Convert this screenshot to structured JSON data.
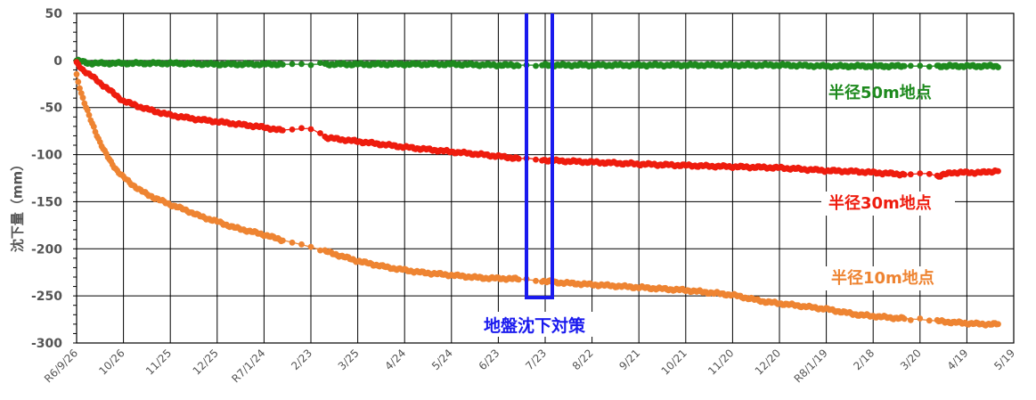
{
  "chart_data": {
    "type": "scatter",
    "ylabel": "沈下量（mm）",
    "ylim": [
      -300,
      50
    ],
    "yticks": [
      50,
      0,
      -50,
      -100,
      -150,
      -200,
      -250,
      -300
    ],
    "xticks": [
      "R6/9/26",
      "10/26",
      "11/25",
      "12/25",
      "R7/1/24",
      "2/23",
      "3/25",
      "4/24",
      "5/24",
      "6/23",
      "7/23",
      "8/22",
      "9/21",
      "10/21",
      "11/20",
      "12/20",
      "R8/1/19",
      "2/18",
      "3/20",
      "4/19",
      "5/19"
    ],
    "grid": true,
    "series": [
      {
        "name": "半径50m地点",
        "color": "#1e8a1e",
        "points": [
          [
            0,
            0
          ],
          [
            8,
            -3
          ],
          [
            30,
            -3
          ],
          [
            60,
            -3
          ],
          [
            90,
            -4
          ],
          [
            120,
            -4
          ],
          [
            150,
            -4
          ],
          [
            180,
            -4
          ],
          [
            210,
            -4
          ],
          [
            240,
            -4
          ],
          [
            270,
            -5
          ],
          [
            300,
            -5
          ],
          [
            330,
            -5
          ],
          [
            360,
            -5
          ],
          [
            390,
            -5
          ],
          [
            420,
            -5
          ],
          [
            450,
            -5
          ],
          [
            480,
            -6
          ],
          [
            510,
            -6
          ],
          [
            540,
            -6
          ],
          [
            570,
            -6
          ],
          [
            590,
            -6
          ]
        ]
      },
      {
        "name": "半径30m地点",
        "color": "#ee1c0e",
        "points": [
          [
            0,
            -3
          ],
          [
            4,
            -10
          ],
          [
            10,
            -17
          ],
          [
            15,
            -24
          ],
          [
            20,
            -30
          ],
          [
            25,
            -37
          ],
          [
            30,
            -43
          ],
          [
            40,
            -49
          ],
          [
            50,
            -54
          ],
          [
            60,
            -58
          ],
          [
            75,
            -62
          ],
          [
            90,
            -65
          ],
          [
            105,
            -68
          ],
          [
            120,
            -71
          ],
          [
            130,
            -74
          ],
          [
            150,
            -72
          ],
          [
            160,
            -82
          ],
          [
            190,
            -88
          ],
          [
            210,
            -92
          ],
          [
            240,
            -97
          ],
          [
            260,
            -100
          ],
          [
            283,
            -104
          ],
          [
            290,
            -104
          ],
          [
            300,
            -106
          ],
          [
            360,
            -110
          ],
          [
            400,
            -112
          ],
          [
            450,
            -114
          ],
          [
            480,
            -117
          ],
          [
            500,
            -118
          ],
          [
            530,
            -121
          ],
          [
            545,
            -120
          ],
          [
            552,
            -123
          ],
          [
            560,
            -119
          ],
          [
            580,
            -119
          ],
          [
            590,
            -117
          ]
        ]
      },
      {
        "name": "半径10m地点",
        "color": "#ee8432",
        "points": [
          [
            0,
            -15
          ],
          [
            3,
            -35
          ],
          [
            6,
            -50
          ],
          [
            9,
            -63
          ],
          [
            12,
            -75
          ],
          [
            15,
            -87
          ],
          [
            18,
            -97
          ],
          [
            22,
            -108
          ],
          [
            26,
            -117
          ],
          [
            30,
            -124
          ],
          [
            35,
            -131
          ],
          [
            40,
            -137
          ],
          [
            45,
            -142
          ],
          [
            50,
            -146
          ],
          [
            60,
            -153
          ],
          [
            70,
            -159
          ],
          [
            80,
            -166
          ],
          [
            90,
            -171
          ],
          [
            100,
            -177
          ],
          [
            110,
            -181
          ],
          [
            120,
            -185
          ],
          [
            130,
            -190
          ],
          [
            140,
            -194
          ],
          [
            150,
            -198
          ],
          [
            160,
            -203
          ],
          [
            170,
            -208
          ],
          [
            180,
            -213
          ],
          [
            200,
            -220
          ],
          [
            220,
            -225
          ],
          [
            240,
            -228
          ],
          [
            260,
            -231
          ],
          [
            283,
            -232
          ],
          [
            290,
            -233
          ],
          [
            310,
            -236
          ],
          [
            330,
            -238
          ],
          [
            360,
            -241
          ],
          [
            390,
            -244
          ],
          [
            420,
            -249
          ],
          [
            440,
            -256
          ],
          [
            460,
            -260
          ],
          [
            480,
            -264
          ],
          [
            500,
            -270
          ],
          [
            520,
            -273
          ],
          [
            540,
            -275
          ],
          [
            560,
            -278
          ],
          [
            580,
            -280
          ],
          [
            590,
            -280
          ]
        ]
      }
    ],
    "annotations": {
      "series_labels": [
        "半径50m地点",
        "半径30m地点",
        "半径10m地点"
      ],
      "period_label": "地盤沈下対策",
      "period_start": "7/11",
      "period_end": "7/25"
    }
  },
  "colors": {
    "grid": "#000000",
    "tick_text": "#555555",
    "annotation": "#1a1aee"
  }
}
